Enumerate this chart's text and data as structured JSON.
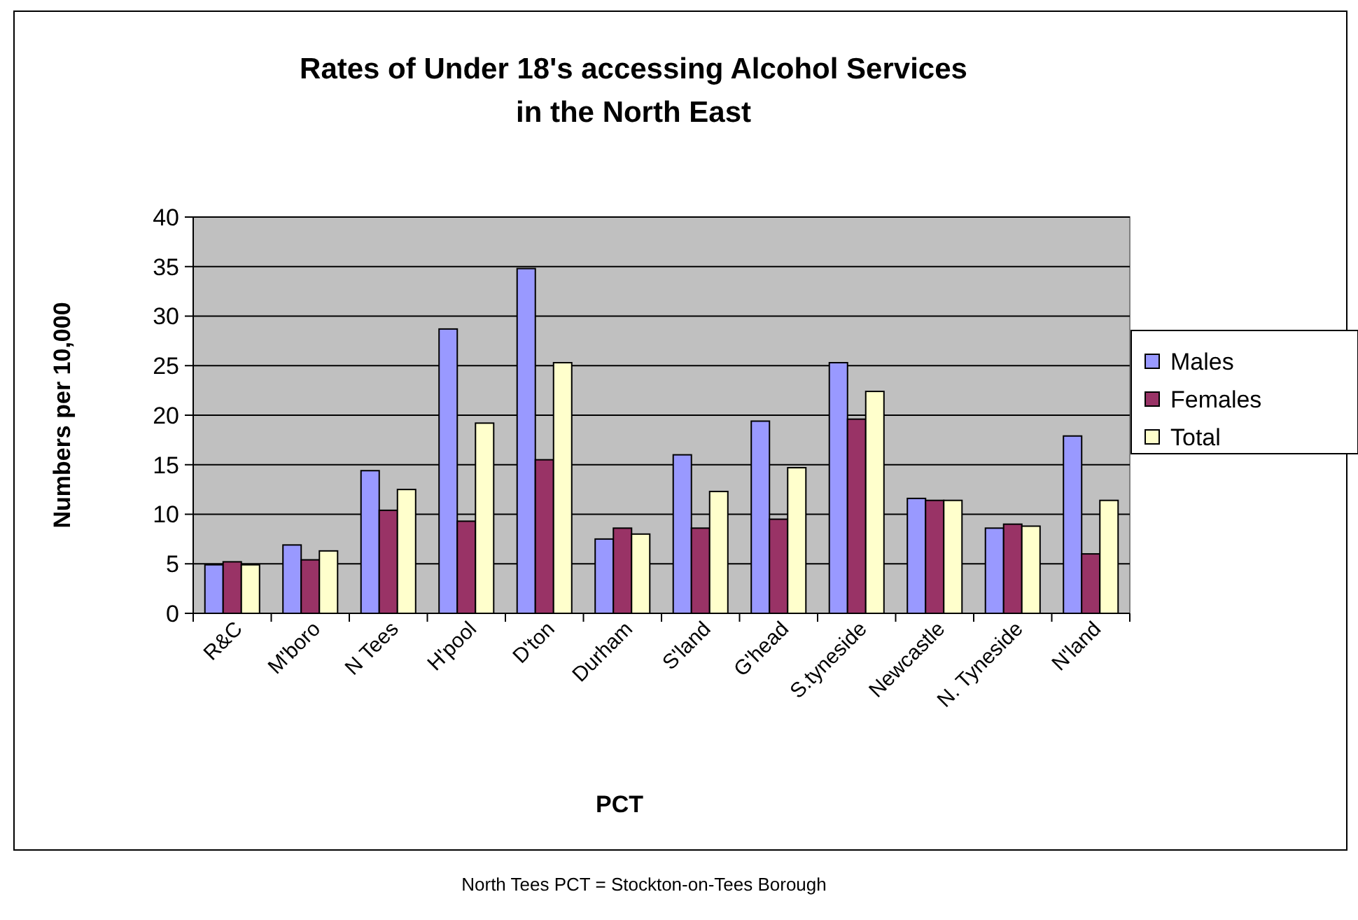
{
  "chart_data": {
    "type": "bar",
    "title": "Rates of Under 18's accessing Alcohol Services\nin the North East",
    "xlabel": "PCT",
    "ylabel": "Numbers per 10,000",
    "categories": [
      "R&C",
      "M'boro",
      "N Tees",
      "H'pool",
      "D'ton",
      "Durham",
      "S'land",
      "G'head",
      "S.tyneside",
      "Newcastle",
      "N. Tyneside",
      "N'land"
    ],
    "series": [
      {
        "name": "Males",
        "color": "#9999ff",
        "values": [
          4.9,
          6.9,
          14.4,
          28.7,
          34.8,
          7.5,
          16.0,
          19.4,
          25.3,
          11.6,
          8.6,
          17.9
        ]
      },
      {
        "name": "Females",
        "color": "#993366",
        "values": [
          5.2,
          5.4,
          10.4,
          9.3,
          15.5,
          8.6,
          8.6,
          9.5,
          19.6,
          11.4,
          9.0,
          6.0
        ]
      },
      {
        "name": "Total",
        "color": "#ffffcc",
        "values": [
          4.9,
          6.3,
          12.5,
          19.2,
          25.3,
          8.0,
          12.3,
          14.7,
          22.4,
          11.4,
          8.8,
          11.4
        ]
      }
    ],
    "ylim": [
      0,
      40
    ],
    "yticks": [
      0,
      5,
      10,
      15,
      20,
      25,
      30,
      35,
      40
    ],
    "grid": "y",
    "legend": "right",
    "annotations": [
      "North Tees PCT = Stockton-on-Tees Borough"
    ]
  }
}
